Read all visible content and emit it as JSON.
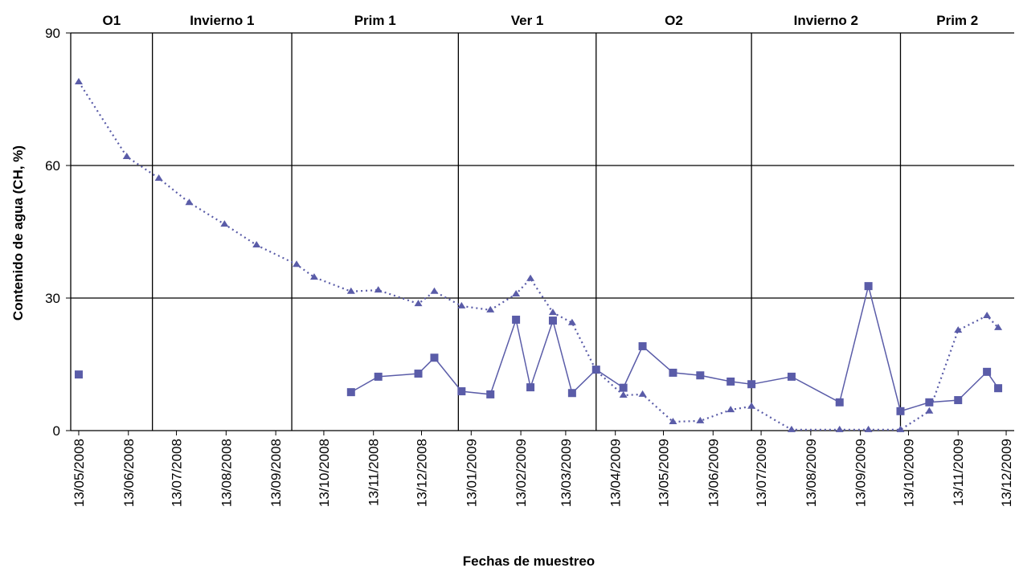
{
  "chart_data": {
    "type": "line",
    "x_label": "Fechas de muestreo",
    "y_label": "Contenido de agua (CH, %)",
    "seasons": [
      "O1",
      "Invierno 1",
      "Prim 1",
      "Ver 1",
      "O2",
      "Invierno 2",
      "Prim 2"
    ],
    "season_boundaries": [
      "28/06/2008",
      "23/09/2008",
      "05/01/2009",
      "01/04/2009",
      "07/07/2009",
      "08/10/2009"
    ],
    "x": [
      "13/05/2008",
      "12/06/2008",
      "02/07/2008",
      "21/07/2008",
      "12/08/2008",
      "01/09/2008",
      "26/09/2008",
      "07/10/2008",
      "30/10/2008",
      "16/11/2008",
      "11/12/2008",
      "21/12/2008",
      "07/01/2009",
      "25/01/2009",
      "10/02/2009",
      "19/02/2009",
      "05/03/2009",
      "17/03/2009",
      "01/04/2009",
      "18/04/2009",
      "30/04/2009",
      "19/05/2009",
      "05/06/2009",
      "24/06/2009",
      "07/07/2009",
      "01/08/2009",
      "31/08/2009",
      "18/09/2009",
      "08/10/2009",
      "26/10/2009",
      "13/11/2009",
      "01/12/2009",
      "08/12/2009"
    ],
    "series": [
      {
        "color": "#5a5ca8",
        "marker": "square",
        "dash": "solid",
        "values": [
          12.7,
          null,
          null,
          null,
          null,
          null,
          null,
          null,
          8.7,
          12.2,
          12.9,
          16.5,
          8.9,
          8.2,
          25.1,
          9.8,
          24.9,
          8.5,
          13.8,
          9.7,
          19.1,
          13.1,
          12.5,
          11.1,
          10.5,
          12.2,
          6.4,
          32.7,
          4.4,
          6.4,
          6.9,
          13.3,
          9.6
        ]
      },
      {
        "color": "#5a5ca8",
        "marker": "triangle",
        "dash": "dotted",
        "values": [
          78.9,
          62.0,
          57.1,
          51.6,
          46.7,
          42.0,
          37.6,
          34.7,
          31.5,
          31.8,
          28.7,
          31.5,
          28.2,
          27.3,
          30.9,
          34.4,
          26.7,
          24.4,
          13.6,
          8.0,
          8.2,
          2.0,
          2.2,
          4.7,
          5.5,
          0.2,
          0.2,
          0.2,
          0.2,
          4.4,
          22.7,
          26.0,
          23.3
        ]
      }
    ],
    "xlim": [
      "08/05/2008",
      "18/12/2009"
    ],
    "xticks": [
      "13/05/2008",
      "13/06/2008",
      "13/07/2008",
      "13/08/2008",
      "13/09/2008",
      "13/10/2008",
      "13/11/2008",
      "13/12/2008",
      "13/01/2009",
      "13/02/2009",
      "13/03/2009",
      "13/04/2009",
      "13/05/2009",
      "13/06/2009",
      "13/07/2009",
      "13/08/2009",
      "13/09/2009",
      "13/10/2009",
      "13/11/2009",
      "13/12/2009"
    ],
    "ylim": [
      0,
      90
    ],
    "yticks": [
      0,
      30,
      60,
      90
    ],
    "grid": true
  }
}
